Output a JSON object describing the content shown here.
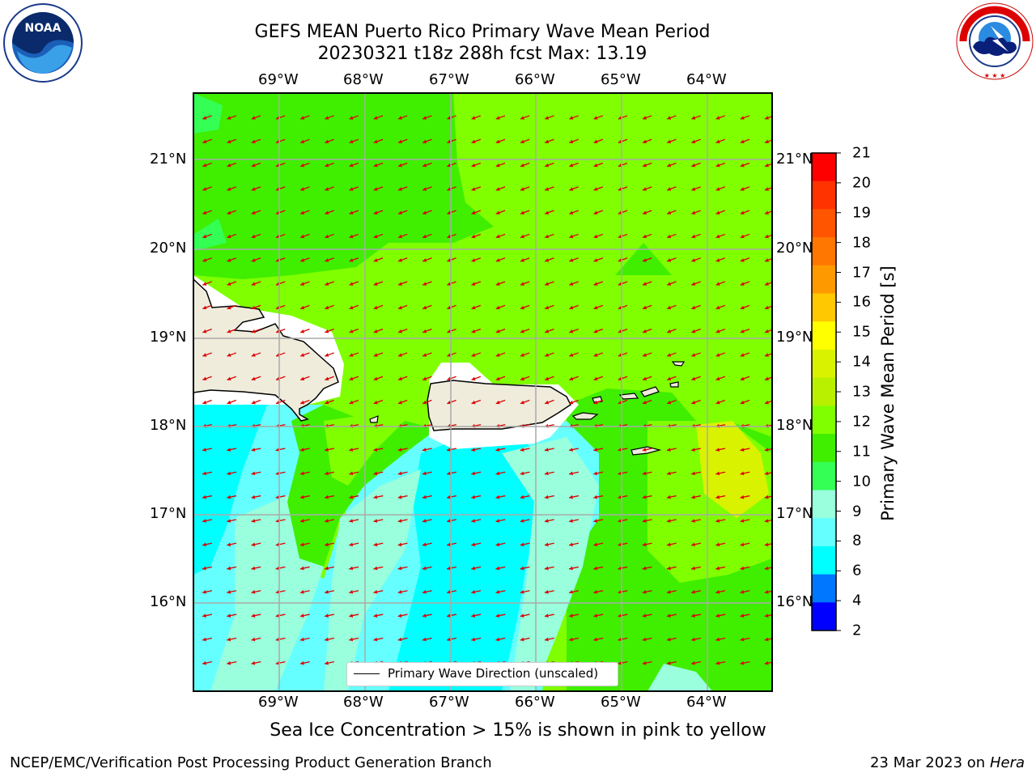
{
  "title": {
    "line1": "GEFS MEAN Puerto Rico Primary Wave Mean Period",
    "line2": "20230321 t18z 288h fcst   Max: 13.19"
  },
  "axes": {
    "lon_labels": [
      "69°W",
      "68°W",
      "67°W",
      "66°W",
      "65°W",
      "64°W"
    ],
    "lat_labels": [
      "21°N",
      "20°N",
      "19°N",
      "18°N",
      "17°N",
      "16°N"
    ]
  },
  "colorbar": {
    "label": "Primary Wave Mean Period [s]",
    "ticks": [
      "21",
      "20",
      "19",
      "18",
      "17",
      "16",
      "15",
      "14",
      "13",
      "12",
      "11",
      "10",
      "9",
      "8",
      "6",
      "4",
      "2"
    ],
    "colors": [
      "#ff0000",
      "#ff3300",
      "#ff5500",
      "#ff7700",
      "#ff9900",
      "#ffc800",
      "#ffff00",
      "#d9f200",
      "#b8f000",
      "#80ff00",
      "#40ee00",
      "#33ff55",
      "#99ffdd",
      "#66ffff",
      "#00ffff",
      "#0077ff",
      "#0000ff"
    ]
  },
  "legend": {
    "text": "Primary Wave Direction (unscaled)"
  },
  "footnote": "Sea Ice Concentration > 15% is shown in pink to yellow",
  "credit": "NCEP/EMC/Verification Post Processing Product Generation Branch",
  "date_text": "23 Mar 2023 on",
  "date_machine": "Hera",
  "logos": {
    "noaa": "NOAA",
    "nws": "NATIONAL WEATHER SERVICE"
  },
  "colors": {
    "arrow": "#dd0000",
    "land": "#efecdc",
    "grid": "#aaaaaa"
  }
}
